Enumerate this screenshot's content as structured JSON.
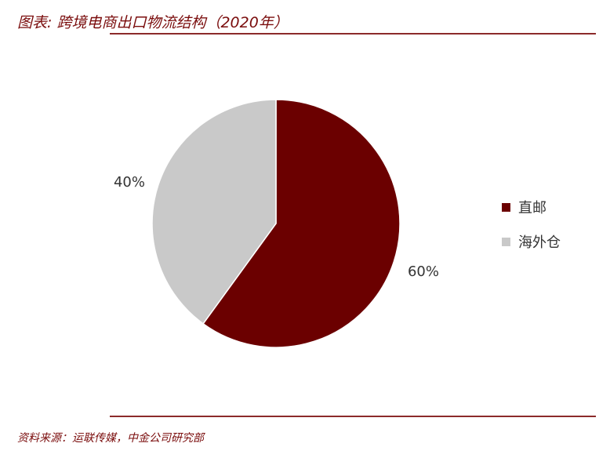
{
  "title": "图表: 跨境电商出口物流结构（2020年）",
  "source": "资料来源：运联传媒，中金公司研究部",
  "colors": {
    "accent": "#7a0c0c",
    "rule": "#8c2a2a"
  },
  "chart_data": {
    "type": "pie",
    "title": "图表: 跨境电商出口物流结构（2020年）",
    "legend_position": "right",
    "slices": [
      {
        "name": "直邮",
        "value": 60,
        "label": "60%",
        "color": "#6b0000"
      },
      {
        "name": "海外仓",
        "value": 40,
        "label": "40%",
        "color": "#c9c9c9"
      }
    ]
  }
}
